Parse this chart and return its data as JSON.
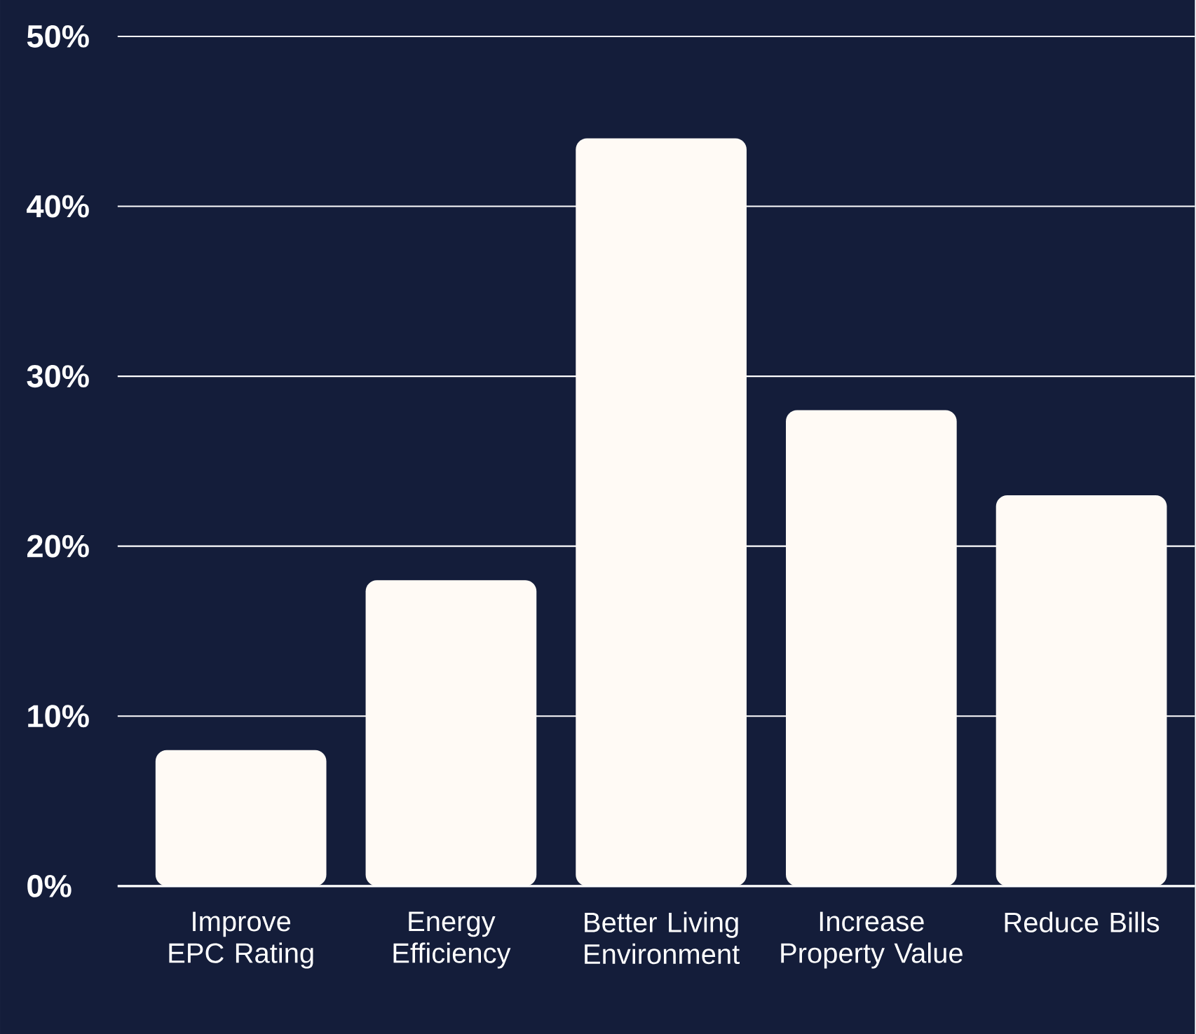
{
  "chart_data": {
    "type": "bar",
    "categories": [
      "Improve EPC Rating",
      "Energy Efficiency",
      "Better Living Environment",
      "Increase Property Value",
      "Reduce Bills"
    ],
    "values": [
      8,
      18,
      44,
      28,
      23
    ],
    "color": "#fffaf5",
    "ylim": [
      0,
      50
    ],
    "yticks": [
      {
        "value": 0,
        "label": "0%"
      },
      {
        "value": 10,
        "label": "10%"
      },
      {
        "value": 20,
        "label": "20%"
      },
      {
        "value": 30,
        "label": "30%"
      },
      {
        "value": 40,
        "label": "40%"
      },
      {
        "value": 50,
        "label": "50%"
      }
    ],
    "grid": "y"
  }
}
